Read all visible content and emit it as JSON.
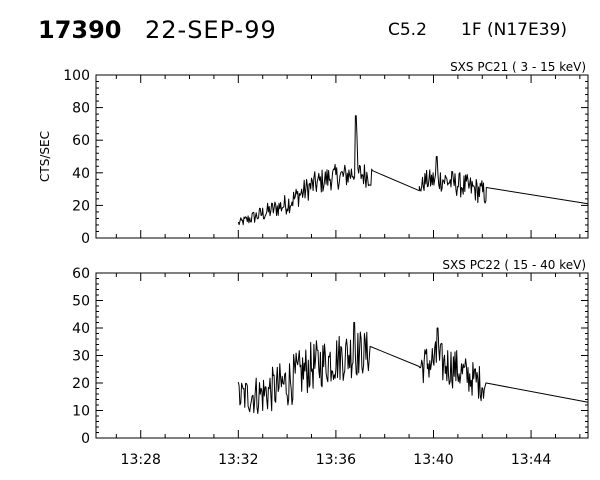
{
  "header": {
    "event_id": "17390",
    "date": "22-SEP-99",
    "goes_class": "C5.2",
    "flare_location": "1F (N17E39)"
  },
  "chart_data": [
    {
      "type": "line",
      "title": "SXS PC21  (  3 - 15 keV)",
      "ylabel": "CTS/SEC",
      "xlabel": "",
      "ylim": [
        0,
        100
      ],
      "yticks": [
        0,
        20,
        40,
        60,
        80,
        100
      ],
      "xlim": [
        "13:26:10",
        "13:46:20"
      ],
      "xticks": [
        "13:28",
        "13:32",
        "13:36",
        "13:40",
        "13:44"
      ],
      "series": [
        {
          "segments": [
            {
              "start": "13:32:00",
              "end": "13:37:30",
              "step_s": 2,
              "trend_t": [
                "13:32:00",
                "13:32:30",
                "13:33:00",
                "13:34:00",
                "13:35:00",
                "13:35:45",
                "13:36:20",
                "13:36:45",
                "13:37:30"
              ],
              "trend_v": [
                9,
                12,
                15,
                21,
                32,
                37,
                38,
                40,
                38
              ],
              "noise": [
                2,
                3,
                4,
                5,
                6,
                6,
                6,
                6,
                6
              ],
              "spikes": [
                {
                  "t": "13:36:49",
                  "v": 75
                },
                {
                  "t": "13:36:52",
                  "v": 62
                }
              ]
            },
            {
              "start": "13:37:30",
              "end": "13:39:25",
              "linear_to": 29
            },
            {
              "start": "13:39:25",
              "end": "13:42:10",
              "step_s": 2,
              "trend_t": [
                "13:39:25",
                "13:39:40",
                "13:40:20",
                "13:41:00",
                "13:41:40",
                "13:42:10"
              ],
              "trend_v": [
                30,
                35,
                36,
                33,
                30,
                27
              ],
              "noise": [
                3,
                5,
                6,
                6,
                6,
                6
              ],
              "spikes": [
                {
                  "t": "13:40:08",
                  "v": 50
                }
              ]
            },
            {
              "start": "13:42:10",
              "end": "13:46:20",
              "from": 31,
              "linear_to": 21
            }
          ]
        }
      ]
    },
    {
      "type": "line",
      "title": "SXS PC22  ( 15 - 40 keV)",
      "ylabel": "",
      "xlabel": "",
      "ylim": [
        0,
        60
      ],
      "yticks": [
        0,
        10,
        20,
        30,
        40,
        50,
        60
      ],
      "xlim": [
        "13:26:10",
        "13:46:20"
      ],
      "xticks": [
        "13:28",
        "13:32",
        "13:36",
        "13:40",
        "13:44"
      ],
      "series": [
        {
          "segments": [
            {
              "start": "13:32:00",
              "end": "13:37:25",
              "step_s": 2,
              "trend_t": [
                "13:32:00",
                "13:33:00",
                "13:34:00",
                "13:35:00",
                "13:36:00",
                "13:36:45",
                "13:37:25"
              ],
              "trend_v": [
                15,
                16,
                20,
                26,
                29,
                31,
                31
              ],
              "noise": [
                5,
                6,
                7,
                7,
                7,
                7,
                6
              ],
              "spikes": [
                {
                  "t": "13:36:45",
                  "v": 42
                }
              ]
            },
            {
              "start": "13:37:25",
              "end": "13:39:25",
              "linear_to": 26
            },
            {
              "start": "13:39:25",
              "end": "13:42:10",
              "step_s": 2,
              "trend_t": [
                "13:39:25",
                "13:40:00",
                "13:40:45",
                "13:41:30",
                "13:42:10"
              ],
              "trend_v": [
                26,
                28,
                26,
                22,
                19
              ],
              "noise": [
                5,
                6,
                6,
                5,
                5
              ],
              "spikes": [
                {
                  "t": "13:40:10",
                  "v": 40
                }
              ]
            },
            {
              "start": "13:42:10",
              "end": "13:46:20",
              "from": 20,
              "linear_to": 13
            }
          ]
        }
      ]
    }
  ]
}
